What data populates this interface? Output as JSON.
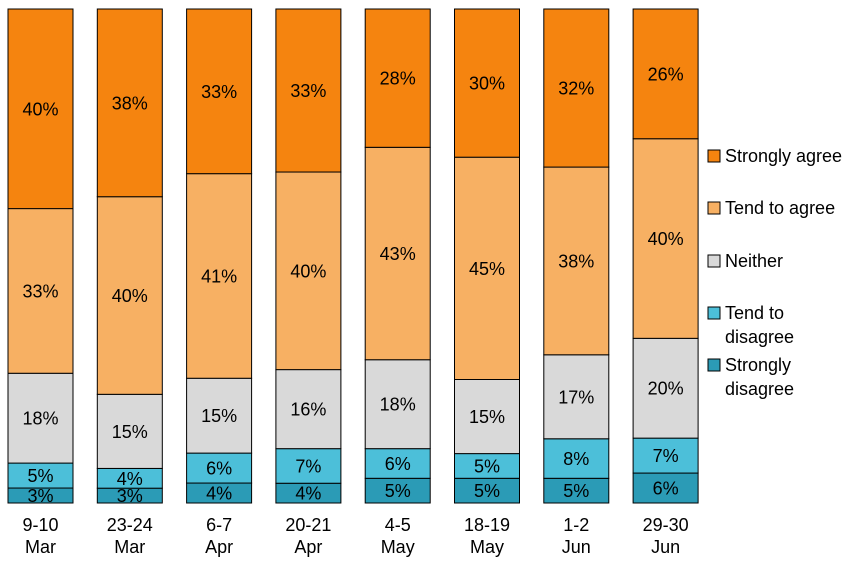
{
  "chart_data": {
    "type": "bar",
    "stacked": true,
    "orientation": "vertical",
    "categories": [
      [
        "9-10",
        "Mar"
      ],
      [
        "23-24",
        "Mar"
      ],
      [
        "6-7",
        "Apr"
      ],
      [
        "20-21",
        "Apr"
      ],
      [
        "4-5",
        "May"
      ],
      [
        "18-19",
        "May"
      ],
      [
        "1-2",
        "Jun"
      ],
      [
        "29-30",
        "Jun"
      ]
    ],
    "series": [
      {
        "name": "Strongly disagree",
        "legend_lines": [
          "Strongly",
          "disagree"
        ],
        "color": "#2b9bb6",
        "values": [
          3,
          3,
          4,
          4,
          5,
          5,
          5,
          6
        ]
      },
      {
        "name": "Tend to disagree",
        "legend_lines": [
          "Tend to",
          "disagree"
        ],
        "color": "#4cbfd9",
        "values": [
          5,
          4,
          6,
          7,
          6,
          5,
          8,
          7
        ]
      },
      {
        "name": "Neither",
        "legend_lines": [
          "Neither"
        ],
        "color": "#d9d9d9",
        "values": [
          18,
          15,
          15,
          16,
          18,
          15,
          17,
          20
        ]
      },
      {
        "name": "Tend to agree",
        "legend_lines": [
          "Tend to agree"
        ],
        "color": "#f7b063",
        "values": [
          33,
          40,
          41,
          40,
          43,
          45,
          38,
          40
        ]
      },
      {
        "name": "Strongly agree",
        "legend_lines": [
          "Strongly agree"
        ],
        "color": "#f5840f",
        "values": [
          40,
          38,
          33,
          33,
          28,
          30,
          32,
          26
        ]
      }
    ],
    "value_suffix": "%",
    "ylim": [
      0,
      100
    ],
    "legend_order": [
      "Strongly agree",
      "Tend to agree",
      "Neither",
      "Tend to disagree",
      "Strongly disagree"
    ],
    "legend_position": "right",
    "grid": false
  }
}
